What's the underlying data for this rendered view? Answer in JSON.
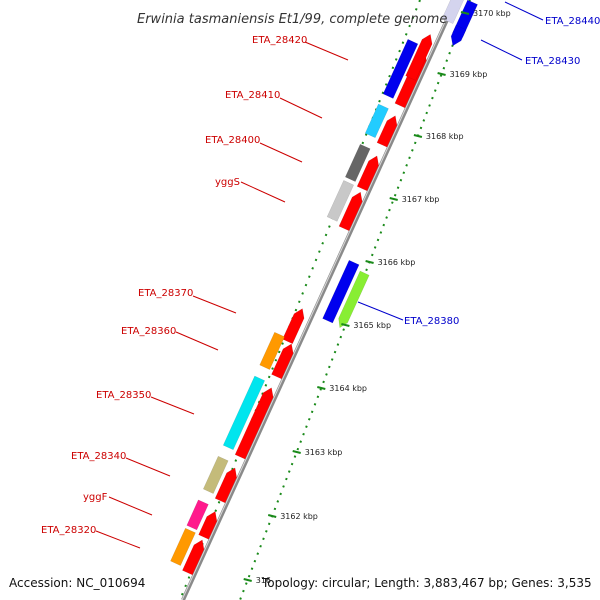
{
  "title": "Erwinia tasmaniensis Et1/99, complete genome",
  "accession": "Accession: NC_010694",
  "summary": "Topology: circular; Length: 3,883,467 bp; Genes: 3,535",
  "colors": {
    "forward_label": "#cc0000",
    "reverse_label": "#0000cc",
    "backbone": "#8a8a8a",
    "tick": "#1a8a1a",
    "cds": "#ff0000"
  },
  "ticks": [
    {
      "label": "3170 kbp"
    },
    {
      "label": "3169 kbp"
    },
    {
      "label": "3168 kbp"
    },
    {
      "label": "3167 kbp"
    },
    {
      "label": "3166 kbp"
    },
    {
      "label": "3165 kbp"
    },
    {
      "label": "3164 kbp"
    },
    {
      "label": "3163 kbp"
    },
    {
      "label": "3162 kbp"
    },
    {
      "label": "316"
    }
  ],
  "forward_genes": [
    {
      "name": "ETA_28420",
      "color": "#0000ee"
    },
    {
      "name": "ETA_28410",
      "color": "#22ccff"
    },
    {
      "name": "ETA_28400",
      "color": "#666666"
    },
    {
      "name": "yggS",
      "color": "#c8c8c8"
    },
    {
      "name": "ETA_28370",
      "color": "#ff0000"
    },
    {
      "name": "ETA_28360",
      "color": "#ff9900"
    },
    {
      "name": "ETA_28350",
      "color": "#00e5ee"
    },
    {
      "name": "ETA_28340",
      "color": "#c4bb7a"
    },
    {
      "name": "yggF",
      "color": "#ff1a8c"
    },
    {
      "name": "ETA_28320",
      "color": "#ff9900"
    }
  ],
  "reverse_genes": [
    {
      "name": "ETA_28440",
      "color": "#0000ee"
    },
    {
      "name": "ETA_28430",
      "color": "#0000ee"
    },
    {
      "name": "ETA_28380",
      "color": "#0000ee"
    }
  ]
}
